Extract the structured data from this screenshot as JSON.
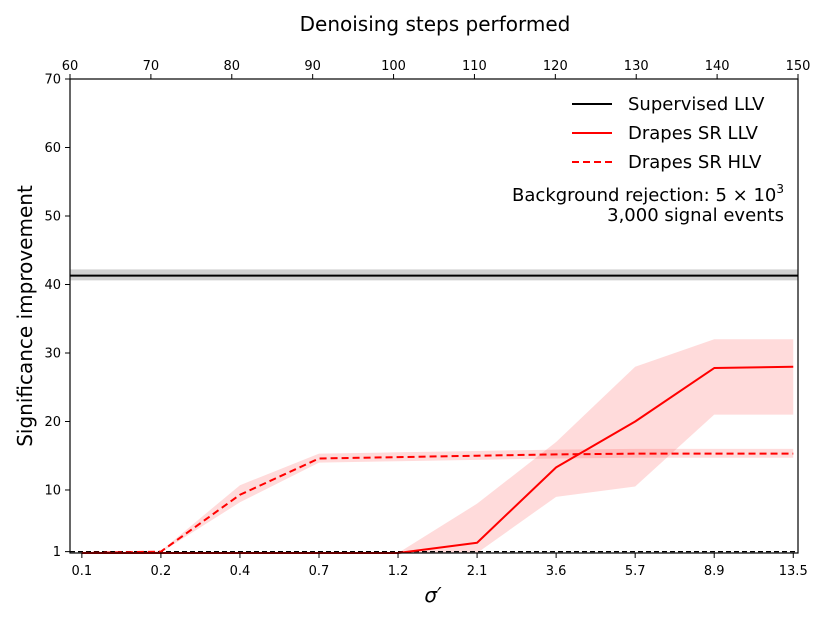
{
  "chart_data": {
    "type": "line",
    "top_axis": {
      "label": "Denoising steps performed",
      "ticks": [
        "60",
        "70",
        "80",
        "90",
        "100",
        "110",
        "120",
        "130",
        "140",
        "150"
      ]
    },
    "xlabel": "σ′",
    "ylabel": "Significance improvement",
    "ylim": [
      0.8,
      70
    ],
    "yticks": [
      {
        "value": 1,
        "label": "1"
      },
      {
        "value": 10,
        "label": "10"
      },
      {
        "value": 20,
        "label": "20"
      },
      {
        "value": 30,
        "label": "30"
      },
      {
        "value": 40,
        "label": "40"
      },
      {
        "value": 50,
        "label": "50"
      },
      {
        "value": 60,
        "label": "60"
      },
      {
        "value": 70,
        "label": "70"
      }
    ],
    "categories": [
      "0.1",
      "0.2",
      "0.4",
      "0.7",
      "1.2",
      "2.1",
      "3.6",
      "5.7",
      "8.9",
      "13.5"
    ],
    "x_positions": [
      0,
      1,
      2,
      3,
      4,
      5,
      6,
      7,
      8,
      9
    ],
    "series": [
      {
        "name": "Supervised LLV",
        "color": "#000000",
        "style": "solid",
        "constant": 41.3,
        "band": [
          40.6,
          42.2
        ]
      },
      {
        "name": "Drapes SR LLV",
        "color": "#ff0000",
        "style": "solid",
        "values": [
          0.8,
          0.8,
          0.8,
          0.8,
          0.8,
          2.3,
          13.3,
          20.0,
          27.8,
          28.0
        ],
        "lower": [
          0.8,
          0.8,
          0.8,
          0.8,
          0.8,
          0.8,
          9.0,
          10.5,
          21.0,
          21.0
        ],
        "upper": [
          0.8,
          0.8,
          0.8,
          0.8,
          0.8,
          8.0,
          17.0,
          28.0,
          32.0,
          32.0
        ]
      },
      {
        "name": "Drapes SR HLV",
        "color": "#ff0000",
        "style": "dashed",
        "values": [
          0.8,
          1.0,
          9.3,
          14.6,
          14.8,
          15.0,
          15.2,
          15.3,
          15.3,
          15.3
        ],
        "lower": [
          0.8,
          0.9,
          8.2,
          14.0,
          14.2,
          14.4,
          14.6,
          14.7,
          14.7,
          14.7
        ],
        "upper": [
          0.8,
          1.1,
          10.7,
          15.3,
          15.5,
          15.7,
          15.9,
          16.0,
          16.0,
          16.0
        ]
      }
    ],
    "reference_line": {
      "value": 1,
      "color": "#000000",
      "style": "dashed"
    },
    "annotations": [
      {
        "text_main": "Background rejection: 5 × 10",
        "text_sup": "3"
      },
      {
        "text": "3,000 signal events"
      }
    ],
    "legend_position": "top-right"
  }
}
